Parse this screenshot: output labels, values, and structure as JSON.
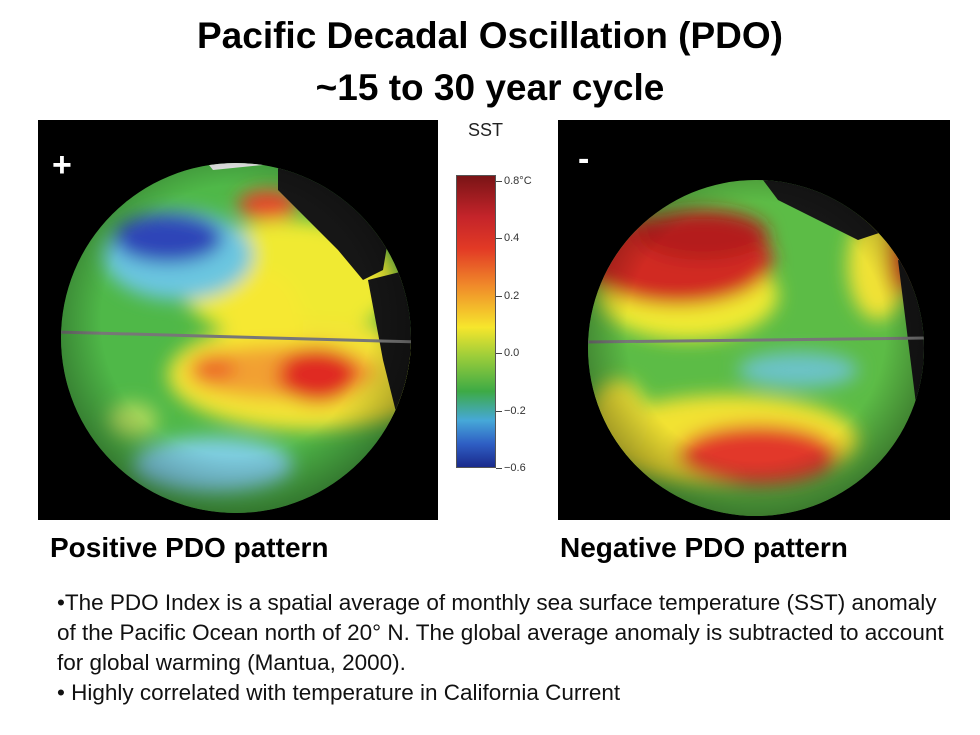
{
  "title": {
    "line1": "Pacific Decadal Oscillation (PDO)",
    "line2": "~15 to 30 year cycle"
  },
  "panels": {
    "positive": {
      "sign": "+",
      "caption": "Positive PDO pattern"
    },
    "negative": {
      "sign": "-",
      "caption": "Negative PDO pattern"
    }
  },
  "colorbar": {
    "label": "SST",
    "ticks": [
      "0.8°C",
      "0.4",
      "0.2",
      "0.0",
      "−0.2",
      "−0.6"
    ],
    "colors": {
      "warm": "#c4242a",
      "neutral": "#3daa45",
      "cool": "#2f5fc4"
    }
  },
  "bullets": {
    "first": "•The PDO Index is a spatial average of monthly sea surface temperature (SST) anomaly of the Pacific Ocean north of 20° N. The global average anomaly is subtracted to account for global warming (Mantua, 2000).",
    "second": "• Highly correlated with temperature in California Current"
  }
}
